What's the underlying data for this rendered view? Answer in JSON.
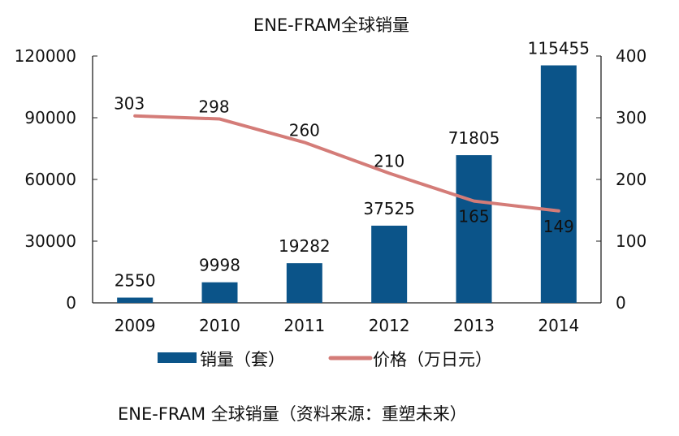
{
  "chart_data": {
    "type": "bar+line",
    "title": "ENE-FRAM全球销量",
    "categories": [
      "2009",
      "2010",
      "2011",
      "2012",
      "2013",
      "2014"
    ],
    "series": [
      {
        "name": "销量（套）",
        "type": "bar",
        "axis": "left",
        "values": [
          2550,
          9998,
          19282,
          37525,
          71805,
          115455
        ],
        "color": "#0b5489"
      },
      {
        "name": "价格（万日元）",
        "type": "line",
        "axis": "right",
        "values": [
          303,
          298,
          260,
          210,
          165,
          149
        ],
        "color": "#d47c78"
      }
    ],
    "y_left": {
      "ylim": [
        0,
        120000
      ],
      "ticks": [
        "0",
        "30000",
        "60000",
        "90000",
        "120000"
      ]
    },
    "y_right": {
      "ylim": [
        0,
        400
      ],
      "ticks": [
        "0",
        "100",
        "200",
        "300",
        "400"
      ]
    },
    "grid": false,
    "legend_position": "bottom",
    "caption": "ENE-FRAM 全球销量（资料来源：重塑未来）"
  }
}
